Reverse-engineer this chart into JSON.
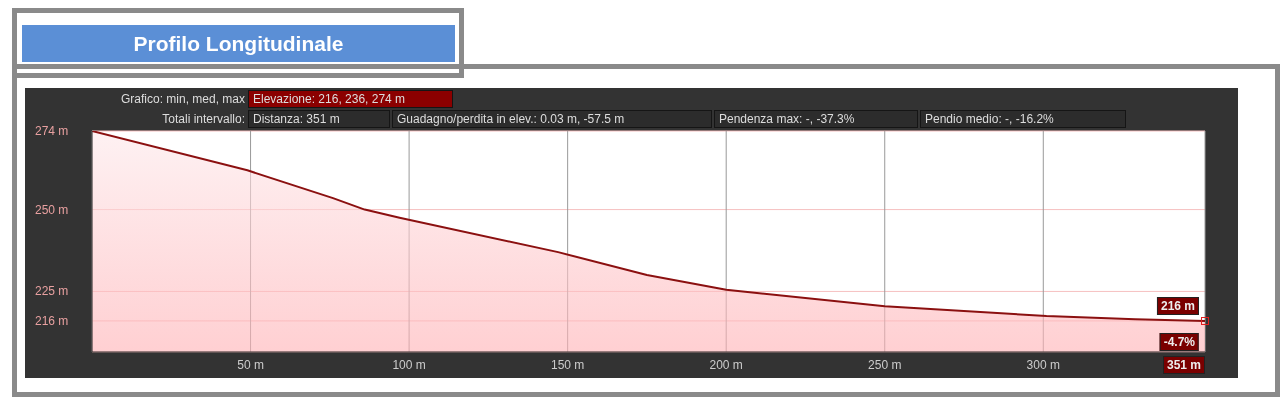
{
  "chart_data": {
    "type": "area",
    "title": "Profilo Longitudinale",
    "x": [
      0,
      49,
      76,
      86,
      97,
      147,
      175,
      200,
      250,
      301,
      329,
      351
    ],
    "series": [
      {
        "color": "#8b1010",
        "values": [
          274,
          262,
          253.5,
          250,
          247.5,
          237,
          230,
          225.5,
          220.5,
          217.5,
          216.5,
          216
        ]
      }
    ],
    "xlim": [
      0,
      351
    ],
    "xticks": [
      {
        "value": 50,
        "label": "50 m"
      },
      {
        "value": 100,
        "label": "100 m"
      },
      {
        "value": 150,
        "label": "150 m"
      },
      {
        "value": 200,
        "label": "200 m"
      },
      {
        "value": 250,
        "label": "250 m"
      },
      {
        "value": 300,
        "label": "300 m"
      }
    ],
    "ylim": [
      206.5,
      274
    ],
    "yticks": [
      {
        "value": 216,
        "label": "216 m"
      },
      {
        "value": 225,
        "label": "225 m"
      },
      {
        "value": 250,
        "label": "250 m"
      },
      {
        "value": 274,
        "label": "274 m"
      }
    ],
    "grid": true,
    "annotations": [
      "Grafico: min, med, max",
      "Elevazione: 216, 236, 274 m",
      "Totali intervallo:",
      "Distanza: 351 m",
      "Guadagno/perdita in elev.: 0.03 m, -57.5 m",
      "Pendenza max: -, -37.3%",
      "Pendio medio: -, -16.2%",
      {
        "text": "216 m",
        "x": 351,
        "y": 216
      },
      {
        "text": "-4.7%",
        "x": 351,
        "y": 216
      },
      "351 m"
    ]
  }
}
